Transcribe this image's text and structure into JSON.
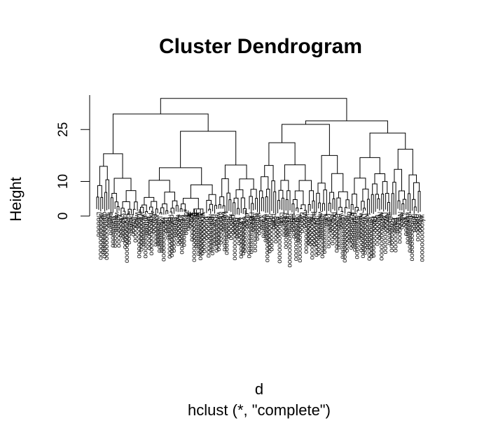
{
  "chart_data": {
    "type": "dendrogram",
    "title": "Cluster Dendrogram",
    "xlabel": "d",
    "sub": "hclust (*, \"complete\")",
    "ylabel": "Height",
    "ylim": [
      0,
      35
    ],
    "yticks": [
      0,
      10,
      25
    ],
    "method": "complete",
    "n_leaves": 160,
    "top_merges": [
      {
        "name": "root",
        "height": 34.0
      },
      {
        "name": "left-branch",
        "height": 29.5
      },
      {
        "name": "right-branch",
        "height": 27.5
      },
      {
        "name": "left-a",
        "height": 18.0
      },
      {
        "name": "left-b",
        "height": 24.5
      },
      {
        "name": "right-a",
        "height": 26.5
      },
      {
        "name": "right-b",
        "height": 24.0
      }
    ]
  }
}
